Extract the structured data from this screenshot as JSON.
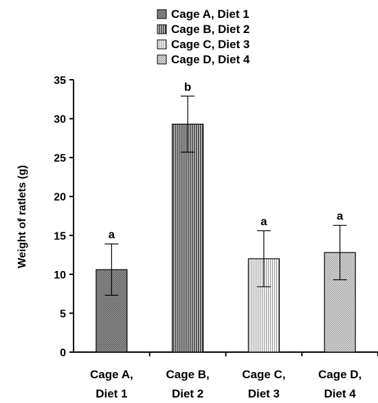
{
  "chart_data": {
    "type": "bar",
    "title": "",
    "xlabel": "",
    "ylabel": "Weight of ratlets (g)",
    "ylim": [
      0,
      35
    ],
    "yticks": [
      "0",
      "5",
      "10",
      "15",
      "20",
      "25",
      "30",
      "35"
    ],
    "grid": false,
    "legend_position": "top-center",
    "categories": [
      [
        "Cage A,",
        "Diet 1"
      ],
      [
        "Cage B,",
        "Diet 2"
      ],
      [
        "Cage C,",
        "Diet 3"
      ],
      [
        "Cage D,",
        "Diet 4"
      ]
    ],
    "series": [
      {
        "name": "Cage A, Diet 1",
        "value": 10.6,
        "error": 3.3,
        "significance": "a",
        "pattern": "crosshatch",
        "color": "#8c8c8c"
      },
      {
        "name": "Cage B, Diet 2",
        "value": 29.3,
        "error": 3.6,
        "significance": "b",
        "pattern": "vertical",
        "color": "#7a7a7a"
      },
      {
        "name": "Cage C, Diet 3",
        "value": 12.0,
        "error": 3.6,
        "significance": "a",
        "pattern": "vertical-light",
        "color": "#d9d9d9"
      },
      {
        "name": "Cage D, Diet 4",
        "value": 12.8,
        "error": 3.5,
        "significance": "a",
        "pattern": "diagonal",
        "color": "#bdbdbd"
      }
    ]
  }
}
